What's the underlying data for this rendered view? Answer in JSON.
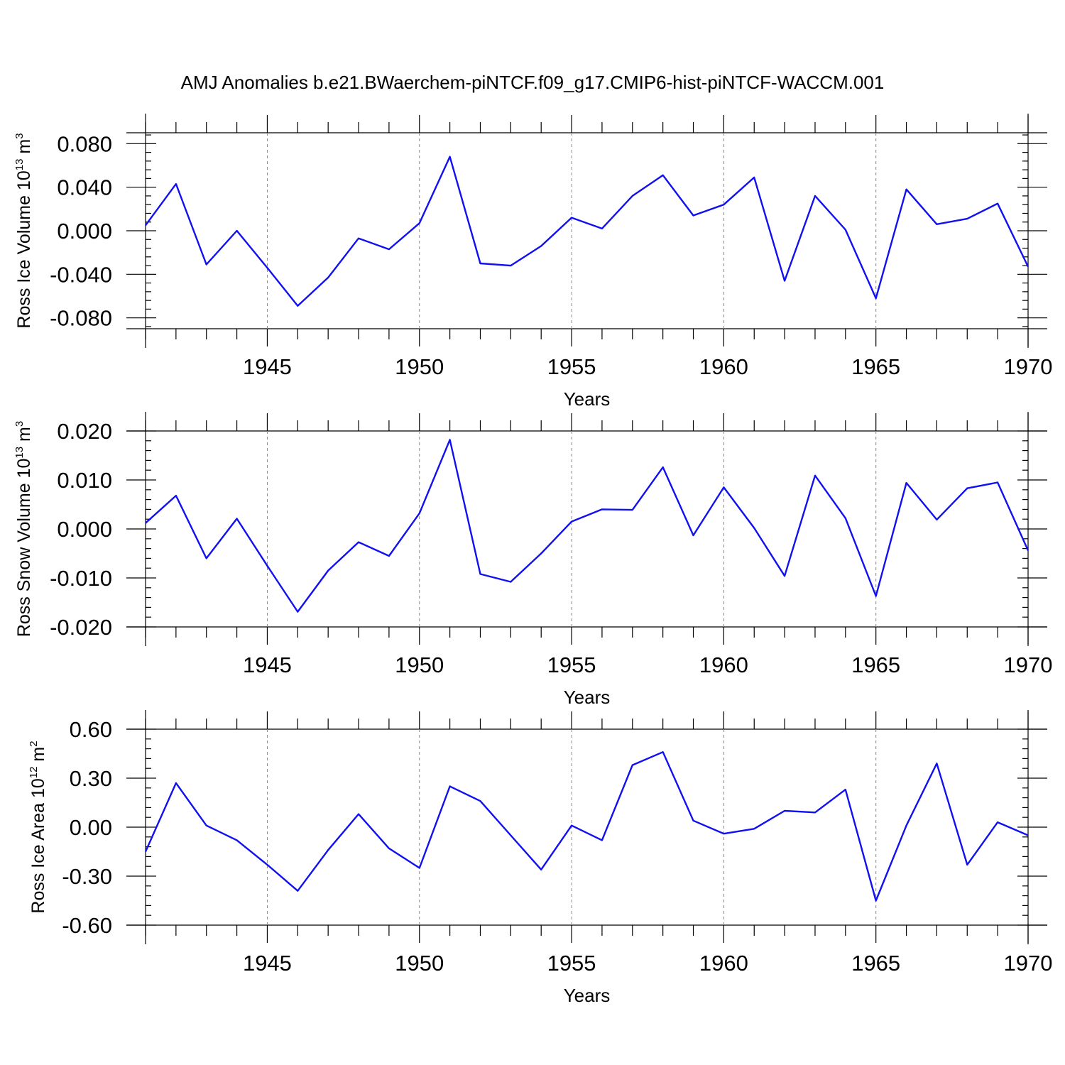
{
  "figure": {
    "title": "AMJ Anomalies b.e21.BWaerchem-piNTCF.f09_g17.CMIP6-hist-piNTCF-WACCM.001"
  },
  "colors": {
    "line": "#1010f0",
    "axis": "#000000",
    "grid": "#888888"
  },
  "chart_data": [
    {
      "type": "line",
      "ylabel": {
        "main": "Ross Ice Volume 10",
        "sup1": "13",
        "mid": " m",
        "sup2": "3"
      },
      "xlabel": "Years",
      "xlim": [
        1941,
        1970
      ],
      "ylim": [
        -0.09,
        0.09
      ],
      "xticks": [
        1945,
        1950,
        1955,
        1960,
        1965,
        1970
      ],
      "xtick_labels": [
        "1945",
        "1950",
        "1955",
        "1960",
        "1965",
        "1970"
      ],
      "yticks": [
        0.08,
        0.04,
        0.0,
        -0.04,
        -0.08
      ],
      "ytick_labels": [
        "0.080",
        "0.040",
        "0.000",
        "-0.040",
        "-0.080"
      ],
      "grid": "vertical dashed at major x ticks",
      "series": [
        {
          "name": "Ross Ice Volume",
          "x": [
            1941,
            1942,
            1943,
            1944,
            1945,
            1946,
            1947,
            1948,
            1949,
            1950,
            1951,
            1952,
            1953,
            1954,
            1955,
            1956,
            1957,
            1958,
            1959,
            1960,
            1961,
            1962,
            1963,
            1964,
            1965,
            1966,
            1967,
            1968,
            1969,
            1970
          ],
          "values": [
            0.005,
            0.043,
            -0.031,
            0.0,
            -0.034,
            -0.069,
            -0.043,
            -0.007,
            -0.017,
            0.007,
            0.068,
            -0.03,
            -0.032,
            -0.014,
            0.012,
            0.002,
            0.032,
            0.051,
            0.014,
            0.024,
            0.049,
            -0.046,
            0.032,
            0.001,
            -0.062,
            0.038,
            0.006,
            0.011,
            0.025,
            -0.033
          ]
        }
      ]
    },
    {
      "type": "line",
      "ylabel": {
        "main": "Ross Snow Volume 10",
        "sup1": "13",
        "mid": " m",
        "sup2": "3"
      },
      "xlabel": "Years",
      "xlim": [
        1941,
        1970
      ],
      "ylim": [
        -0.02,
        0.02
      ],
      "xticks": [
        1945,
        1950,
        1955,
        1960,
        1965,
        1970
      ],
      "xtick_labels": [
        "1945",
        "1950",
        "1955",
        "1960",
        "1965",
        "1970"
      ],
      "yticks": [
        0.02,
        0.01,
        0.0,
        -0.01,
        -0.02
      ],
      "ytick_labels": [
        "0.020",
        "0.010",
        "0.000",
        "-0.010",
        "-0.020"
      ],
      "grid": "vertical dashed at major x ticks",
      "series": [
        {
          "name": "Ross Snow Volume",
          "x": [
            1941,
            1942,
            1943,
            1944,
            1945,
            1946,
            1947,
            1948,
            1949,
            1950,
            1951,
            1952,
            1953,
            1954,
            1955,
            1956,
            1957,
            1958,
            1959,
            1960,
            1961,
            1962,
            1963,
            1964,
            1965,
            1966,
            1967,
            1968,
            1969,
            1970
          ],
          "values": [
            0.0012,
            0.0068,
            -0.006,
            0.0021,
            -0.0075,
            -0.0169,
            -0.0085,
            -0.0027,
            -0.0055,
            0.0032,
            0.0182,
            -0.0092,
            -0.0108,
            -0.005,
            0.0015,
            0.004,
            0.0039,
            0.0126,
            -0.0013,
            0.0085,
            0.0002,
            -0.0096,
            0.0109,
            0.0022,
            -0.0137,
            0.0094,
            0.0019,
            0.0083,
            0.0095,
            -0.0044
          ]
        }
      ]
    },
    {
      "type": "line",
      "ylabel": {
        "main": "Ross Ice Area 10",
        "sup1": "12",
        "mid": " m",
        "sup2": "2"
      },
      "xlabel": "Years",
      "xlim": [
        1941,
        1970
      ],
      "ylim": [
        -0.6,
        0.6
      ],
      "xticks": [
        1945,
        1950,
        1955,
        1960,
        1965,
        1970
      ],
      "xtick_labels": [
        "1945",
        "1950",
        "1955",
        "1960",
        "1965",
        "1970"
      ],
      "yticks": [
        0.6,
        0.3,
        0.0,
        -0.3,
        -0.6
      ],
      "ytick_labels": [
        "0.60",
        "0.30",
        "0.00",
        "-0.30",
        "-0.60"
      ],
      "grid": "vertical dashed at major x ticks",
      "series": [
        {
          "name": "Ross Ice Area",
          "x": [
            1941,
            1942,
            1943,
            1944,
            1945,
            1946,
            1947,
            1948,
            1949,
            1950,
            1951,
            1952,
            1953,
            1954,
            1955,
            1956,
            1957,
            1958,
            1959,
            1960,
            1961,
            1962,
            1963,
            1964,
            1965,
            1966,
            1967,
            1968,
            1969,
            1970
          ],
          "values": [
            -0.15,
            0.27,
            0.01,
            -0.08,
            -0.23,
            -0.39,
            -0.14,
            0.08,
            -0.13,
            -0.25,
            0.25,
            0.16,
            -0.05,
            -0.26,
            0.01,
            -0.08,
            0.38,
            0.46,
            0.04,
            -0.04,
            -0.01,
            0.1,
            0.09,
            0.23,
            -0.45,
            0.01,
            0.39,
            -0.23,
            0.03,
            -0.05
          ]
        }
      ]
    }
  ]
}
